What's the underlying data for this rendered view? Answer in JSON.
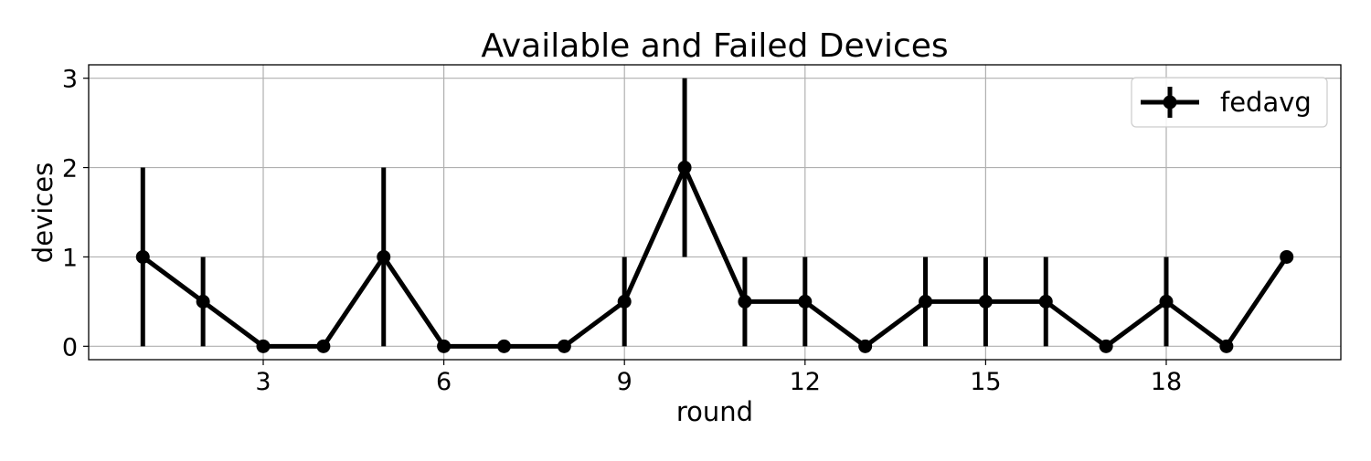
{
  "chart_data": {
    "type": "line",
    "title": "Available and Failed Devices",
    "xlabel": "round",
    "ylabel": "devices",
    "xlim": [
      0.1,
      20.9
    ],
    "ylim": [
      -0.15,
      3.15
    ],
    "xticks": [
      3,
      6,
      9,
      12,
      15,
      18
    ],
    "yticks": [
      0,
      1,
      2,
      3
    ],
    "grid": true,
    "legend_position": "top-right",
    "colors": {
      "series": "#000000",
      "grid": "#b0b0b0"
    },
    "x": [
      1,
      2,
      3,
      4,
      5,
      6,
      7,
      8,
      9,
      10,
      11,
      12,
      13,
      14,
      15,
      16,
      17,
      18,
      19,
      20
    ],
    "series": [
      {
        "name": "fedavg",
        "values": [
          1,
          0.5,
          0,
          0,
          1,
          0,
          0,
          0,
          0.5,
          2,
          0.5,
          0.5,
          0,
          0.5,
          0.5,
          0.5,
          0,
          0.5,
          0,
          1
        ],
        "errors": [
          1,
          0.5,
          0,
          0,
          1,
          0,
          0,
          0,
          0.5,
          1,
          0.5,
          0.5,
          0,
          0.5,
          0.5,
          0.5,
          0,
          0.5,
          0,
          0
        ]
      }
    ]
  }
}
